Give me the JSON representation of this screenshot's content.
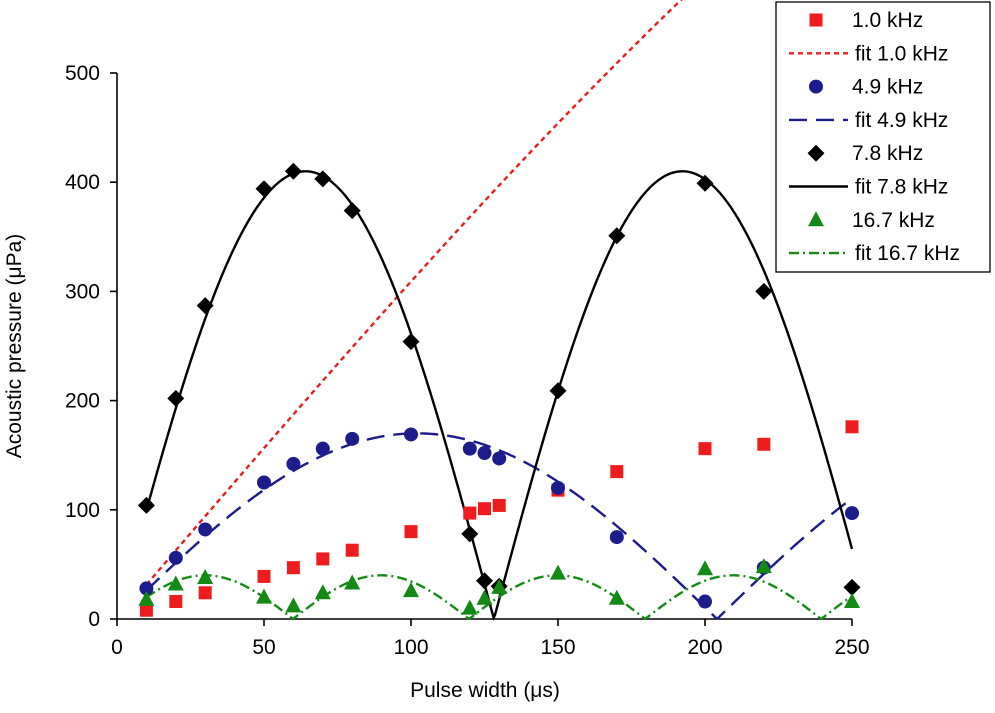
{
  "chart_data": {
    "type": "scatter",
    "xlabel": "Pulse width (μs)",
    "ylabel": "Acoustic pressure (μPa)",
    "xlim": [
      0,
      250
    ],
    "ylim": [
      0,
      500
    ],
    "x_ticks": [
      "0",
      "50",
      "100",
      "150",
      "200",
      "250"
    ],
    "y_ticks": [
      "0",
      "100",
      "200",
      "300",
      "400",
      "500"
    ],
    "grid": false,
    "legend_position": "top-right",
    "legend": [
      "1.0 kHz",
      "fit 1.0 kHz",
      "4.9 kHz",
      "fit 4.9 kHz",
      "7.8 kHz",
      "fit 7.8 kHz",
      "16.7 kHz",
      "fit 16.7 kHz"
    ],
    "series": [
      {
        "name": "1.0 kHz",
        "marker": "square",
        "color": "#ee1c1c",
        "x": [
          10,
          20,
          30,
          50,
          60,
          70,
          80,
          100,
          120,
          125,
          130,
          150,
          170,
          200,
          220,
          250
        ],
        "y": [
          8,
          16,
          24,
          39,
          47,
          55,
          63,
          80,
          97,
          101,
          104,
          118,
          135,
          156,
          160,
          176
        ]
      },
      {
        "name": "4.9 kHz",
        "marker": "circle",
        "color": "#1c1c8c",
        "x": [
          10,
          20,
          30,
          50,
          60,
          70,
          80,
          100,
          120,
          125,
          130,
          150,
          170,
          200,
          220,
          250
        ],
        "y": [
          28,
          56,
          82,
          125,
          142,
          156,
          165,
          169,
          156,
          152,
          147,
          120,
          75,
          16,
          47,
          97
        ]
      },
      {
        "name": "7.8 kHz",
        "marker": "diamond",
        "color": "#000000",
        "x": [
          10,
          20,
          30,
          50,
          60,
          70,
          80,
          100,
          120,
          125,
          130,
          150,
          170,
          200,
          220,
          250
        ],
        "y": [
          104,
          202,
          287,
          394,
          410,
          403,
          374,
          254,
          78,
          35,
          30,
          209,
          351,
          399,
          300,
          29
        ]
      },
      {
        "name": "16.7 kHz",
        "marker": "triangle",
        "color": "#138a13",
        "x": [
          10,
          20,
          30,
          50,
          60,
          70,
          80,
          100,
          120,
          125,
          130,
          150,
          170,
          200,
          220,
          250
        ],
        "y": [
          18,
          32,
          38,
          20,
          12,
          24,
          33,
          26,
          10,
          19,
          29,
          42,
          19,
          46,
          48,
          16
        ]
      }
    ],
    "fits": [
      {
        "name": "fit 1.0 kHz",
        "color": "#ee1c1c",
        "dash": "short-dash",
        "model": "abs-sin",
        "amplitude": 1000,
        "frequency_khz": 1.0
      },
      {
        "name": "fit 4.9 kHz",
        "color": "#1c1c8c",
        "dash": "long-dash",
        "model": "abs-sin",
        "amplitude": 170,
        "frequency_khz": 4.9
      },
      {
        "name": "fit 7.8 kHz",
        "color": "#000000",
        "dash": "solid",
        "model": "abs-sin",
        "amplitude": 410,
        "frequency_khz": 7.8
      },
      {
        "name": "fit 16.7 kHz",
        "color": "#138a13",
        "dash": "dash-dot",
        "model": "abs-sin",
        "amplitude": 40,
        "frequency_khz": 16.7
      }
    ]
  }
}
